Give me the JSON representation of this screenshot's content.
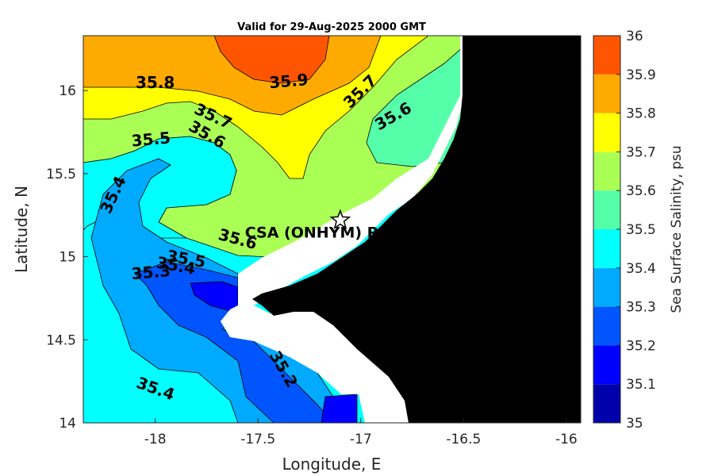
{
  "chart_data": {
    "type": "contour",
    "title": "Valid for 29-Aug-2025 2000 GMT",
    "xlabel": "Longitude, E",
    "ylabel": "Latitude, N",
    "xlim": [
      -18.35,
      -15.93
    ],
    "ylim": [
      14.0,
      16.33
    ],
    "xticks": [
      {
        "value": -18,
        "label": "-18"
      },
      {
        "value": -17.5,
        "label": "-17.5"
      },
      {
        "value": -17,
        "label": "-17"
      },
      {
        "value": -16.5,
        "label": "-16.5"
      },
      {
        "value": -16,
        "label": "-16"
      }
    ],
    "yticks": [
      {
        "value": 14,
        "label": "14"
      },
      {
        "value": 14.5,
        "label": "14.5"
      },
      {
        "value": 15,
        "label": "15"
      },
      {
        "value": 15.5,
        "label": "15.5"
      },
      {
        "value": 16,
        "label": "16"
      }
    ],
    "colorbar": {
      "label": "Sea Surface Salinity, psu",
      "levels": [
        {
          "value": 35.0,
          "label": "35",
          "color": "#0000aa"
        },
        {
          "value": 35.1,
          "label": "35.1",
          "color": "#0000ff"
        },
        {
          "value": 35.2,
          "label": "35.2",
          "color": "#0055ff"
        },
        {
          "value": 35.3,
          "label": "35.3",
          "color": "#00aaff"
        },
        {
          "value": 35.4,
          "label": "35.4",
          "color": "#00ffff"
        },
        {
          "value": 35.5,
          "label": "35.5",
          "color": "#55ffaa"
        },
        {
          "value": 35.6,
          "label": "35.6",
          "color": "#aaff55"
        },
        {
          "value": 35.7,
          "label": "35.7",
          "color": "#ffff00"
        },
        {
          "value": 35.8,
          "label": "35.8",
          "color": "#ffaa00"
        },
        {
          "value": 35.9,
          "label": "35.9",
          "color": "#ff5500"
        },
        {
          "value": 36.0,
          "label": "36"
        }
      ]
    },
    "contour_labels": [
      {
        "text": "35.8",
        "lon": -18.0,
        "lat": 16.04,
        "angle": 0
      },
      {
        "text": "35.9",
        "lon": -17.35,
        "lat": 16.05,
        "angle": -5
      },
      {
        "text": "35.7",
        "lon": -17.0,
        "lat": 15.99,
        "angle": -45
      },
      {
        "text": "35.6",
        "lon": -16.84,
        "lat": 15.84,
        "angle": -30
      },
      {
        "text": "35.7",
        "lon": -17.72,
        "lat": 15.84,
        "angle": 25
      },
      {
        "text": "35.6",
        "lon": -17.75,
        "lat": 15.73,
        "angle": 30
      },
      {
        "text": "35.5",
        "lon": -18.02,
        "lat": 15.7,
        "angle": -5
      },
      {
        "text": "35.4",
        "lon": -18.2,
        "lat": 15.37,
        "angle": -65
      },
      {
        "text": "35.6",
        "lon": -17.6,
        "lat": 15.1,
        "angle": 15
      },
      {
        "text": "35.5",
        "lon": -17.85,
        "lat": 14.98,
        "angle": 10
      },
      {
        "text": "35.4",
        "lon": -17.9,
        "lat": 14.94,
        "angle": 10
      },
      {
        "text": "35.3",
        "lon": -18.02,
        "lat": 14.9,
        "angle": -5
      },
      {
        "text": "35.2",
        "lon": -17.38,
        "lat": 14.32,
        "angle": 60
      },
      {
        "text": "35.4",
        "lon": -18.0,
        "lat": 14.2,
        "angle": 20
      }
    ],
    "station": {
      "label": "CSA (ONHYM) PPL EEZ",
      "lon": -17.1,
      "lat": 15.22,
      "marker": "star"
    }
  }
}
